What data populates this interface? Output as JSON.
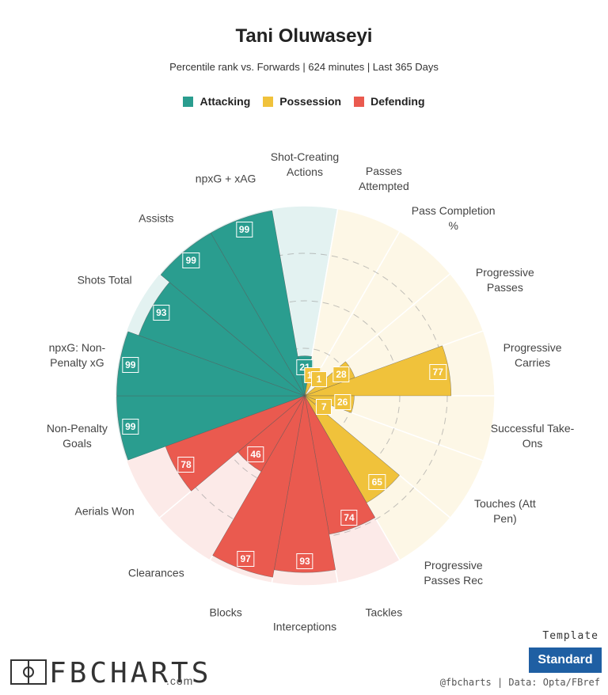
{
  "chart_data": {
    "type": "pizza",
    "title": "Tani Oluwaseyi",
    "subtitle": "Percentile rank vs. Forwards | 624 minutes | Last 365 Days",
    "categories": [
      "Shot-Creating Actions",
      "Passes Attempted",
      "Pass Completion %",
      "Progressive Passes",
      "Progressive Carries",
      "Successful Take-Ons",
      "Touches (Att Pen)",
      "Progressive Passes Rec",
      "Tackles",
      "Interceptions",
      "Blocks",
      "Clearances",
      "Aerials Won",
      "Non-Penalty Goals",
      "npxG: Non-Penalty xG",
      "Shots Total",
      "Assists",
      "npxG + xAG"
    ],
    "series": [
      {
        "name": "Attacking",
        "color": "#2a9d8f",
        "values": [
          21,
          null,
          null,
          null,
          null,
          null,
          null,
          null,
          null,
          null,
          null,
          null,
          null,
          99,
          99,
          93,
          99,
          99
        ]
      },
      {
        "name": "Possession",
        "color": "#f0c23b",
        "values": [
          null,
          13,
          1,
          28,
          77,
          26,
          7,
          65,
          null,
          null,
          null,
          null,
          null,
          null,
          null,
          null,
          null,
          null
        ]
      },
      {
        "name": "Defending",
        "color": "#ea5a4f",
        "values": [
          null,
          null,
          null,
          null,
          null,
          null,
          null,
          null,
          74,
          93,
          97,
          46,
          78,
          null,
          null,
          null,
          null,
          null
        ]
      }
    ],
    "rlim": [
      0,
      100
    ],
    "rticks": [
      25,
      50,
      75
    ],
    "grid": true
  },
  "footer": {
    "template_label": "Template",
    "template_button": "Standard",
    "logo": "FBCHARTS",
    "logo_suffix": ".com",
    "credits": "@fbcharts | Data: Opta/FBref"
  }
}
